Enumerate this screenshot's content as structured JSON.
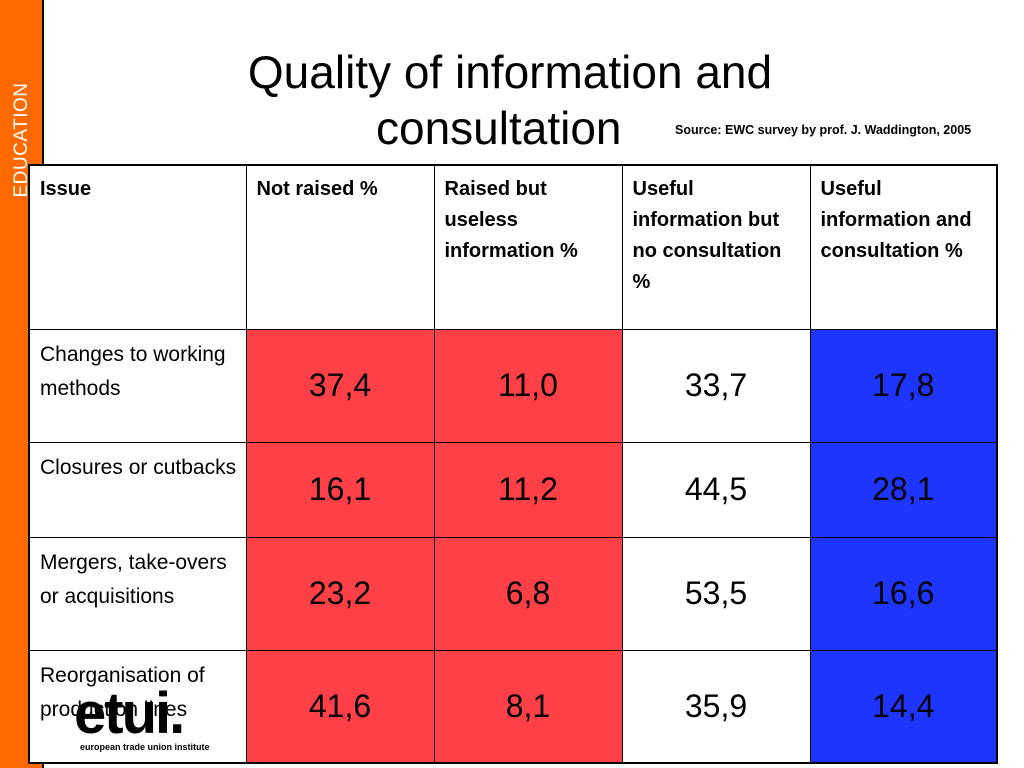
{
  "sidebar": {
    "label": "EDUCATION"
  },
  "title": {
    "line1": "Quality of information and",
    "line2": "consultation"
  },
  "source": "Source: EWC survey by prof. J. Waddington, 2005",
  "table": {
    "headers": [
      "Issue",
      "Not raised %",
      "Raised but useless information %",
      "Useful information but no consultation %",
      "Useful information and consultation %"
    ],
    "rows": [
      {
        "issue": "Changes to working methods",
        "values": [
          "37,4",
          "11,0",
          "33,7",
          "17,8"
        ]
      },
      {
        "issue": "Closures or cutbacks",
        "values": [
          "16,1",
          "11,2",
          "44,5",
          "28,1"
        ]
      },
      {
        "issue": "Mergers, take-overs or acquisitions",
        "values": [
          "23,2",
          "6,8",
          "53,5",
          "16,6"
        ]
      },
      {
        "issue": "Reorganisation of production lines",
        "values": [
          "41,6",
          "8,1",
          "35,9",
          "14,4"
        ]
      }
    ]
  },
  "colors": {
    "sidebar": "#ff6a00",
    "red_cells": "#ff4047",
    "blue_cells": "#1e35ff"
  },
  "logo": {
    "word": "etui.",
    "subtitle": "european trade union institute"
  }
}
